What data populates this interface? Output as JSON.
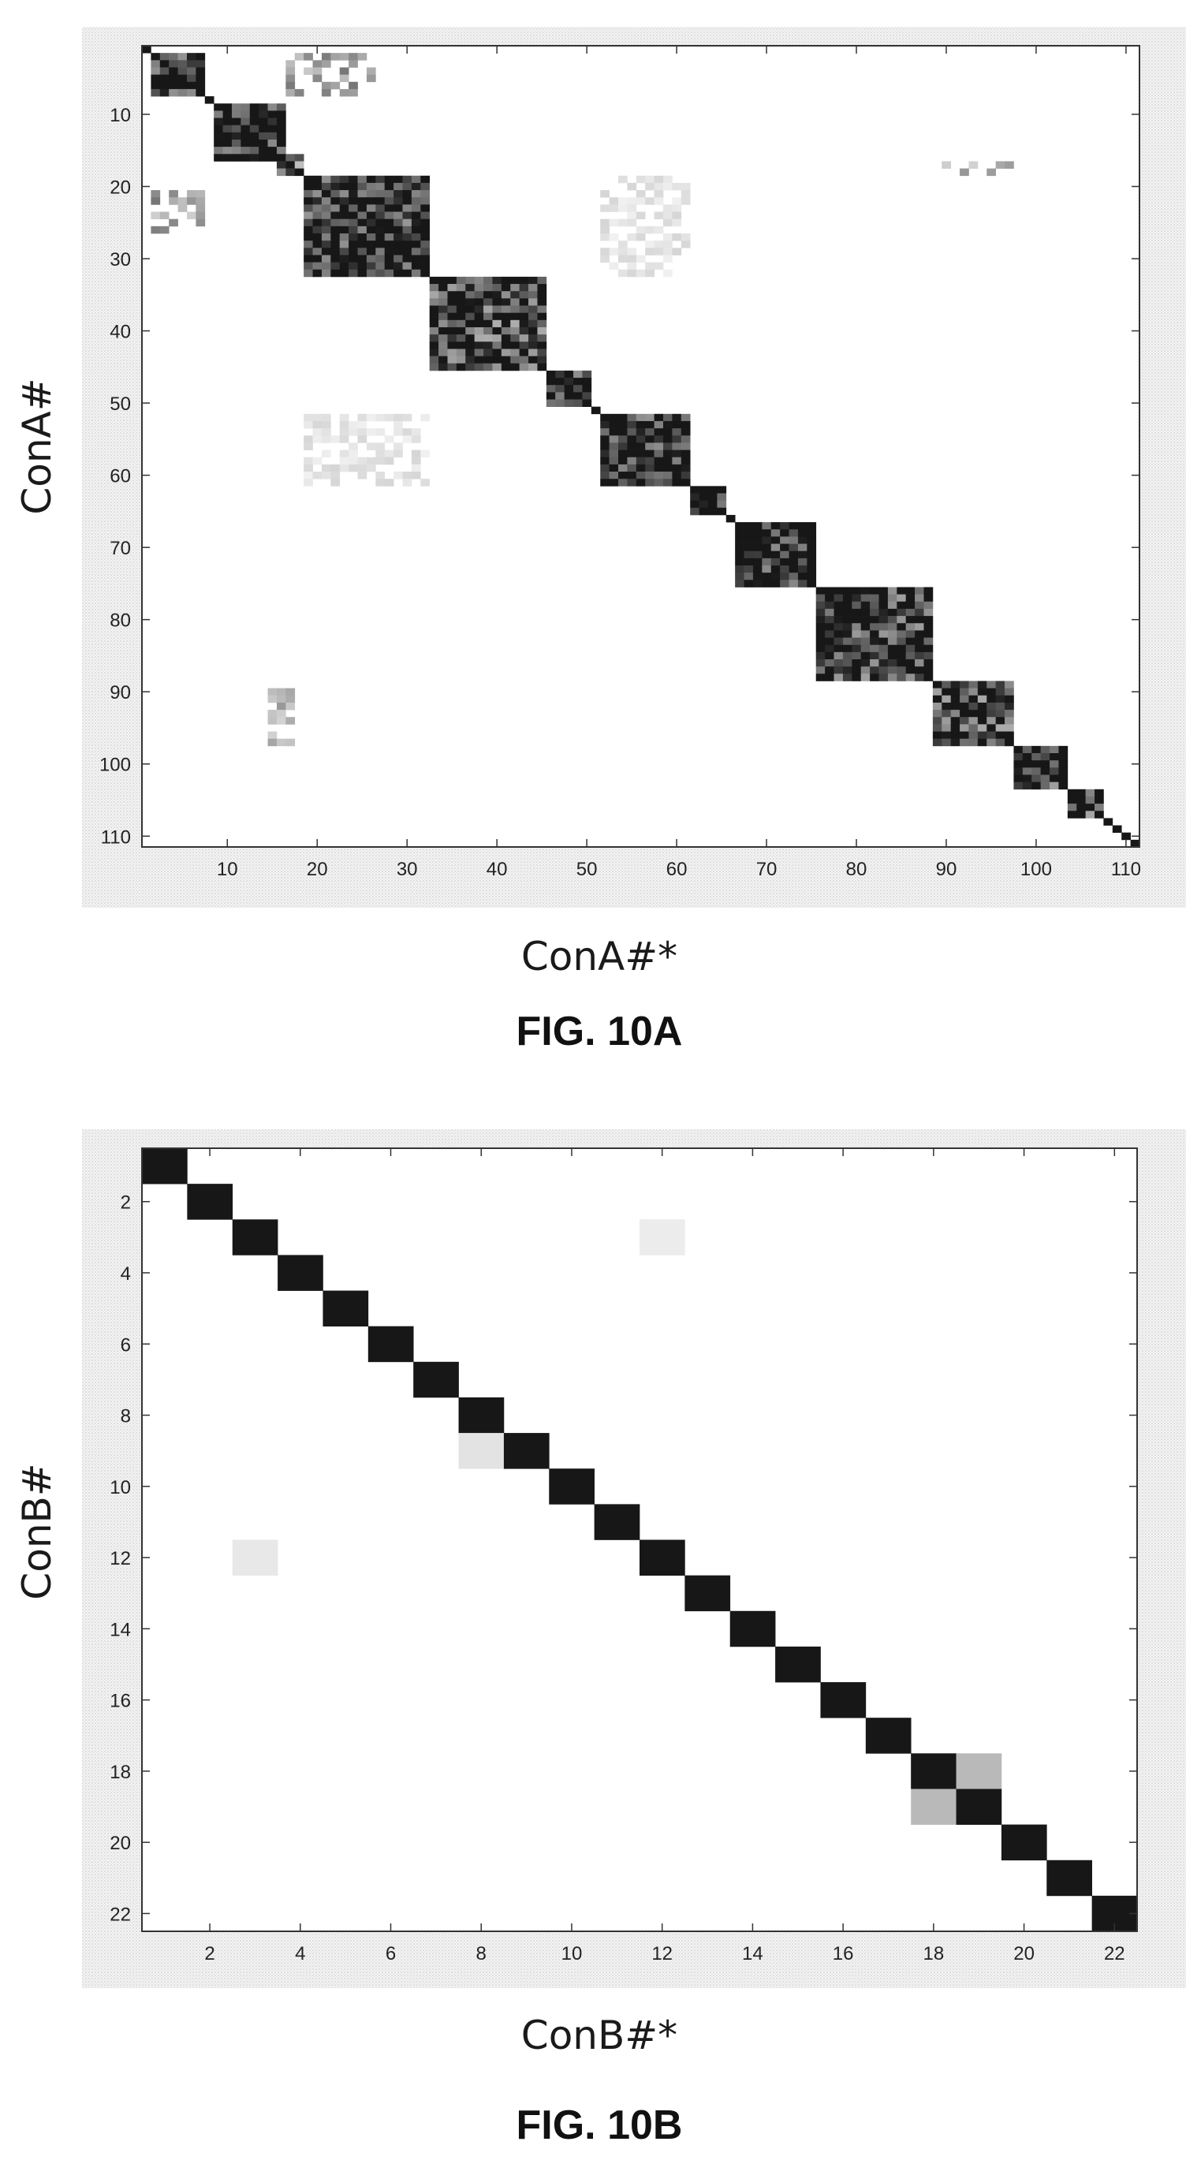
{
  "chart_data": [
    {
      "type": "heatmap",
      "figure_label": "FIG. 10A",
      "xlabel": "ConA#*",
      "ylabel": "ConA#",
      "n": 111,
      "xlim": [
        0.5,
        111.5
      ],
      "ylim": [
        0.5,
        111.5
      ],
      "y_axis_inverted": true,
      "x_ticks": [
        10,
        20,
        30,
        40,
        50,
        60,
        70,
        80,
        90,
        100,
        110
      ],
      "y_ticks": [
        10,
        20,
        30,
        40,
        50,
        60,
        70,
        80,
        90,
        100,
        110
      ],
      "grid": false,
      "colormap": "gray-reversed",
      "value_range": [
        0,
        1
      ],
      "diagonal_value": 1,
      "blocks": [
        {
          "row": [
            2,
            7
          ],
          "col": [
            2,
            7
          ],
          "value": 0.9
        },
        {
          "row": [
            9,
            16
          ],
          "col": [
            9,
            16
          ],
          "value": 0.95
        },
        {
          "row": [
            16,
            18
          ],
          "col": [
            16,
            18
          ],
          "value": 0.55
        },
        {
          "row": [
            19,
            32
          ],
          "col": [
            19,
            32
          ],
          "value": 0.9
        },
        {
          "row": [
            33,
            45
          ],
          "col": [
            33,
            45
          ],
          "value": 0.8
        },
        {
          "row": [
            46,
            50
          ],
          "col": [
            46,
            50
          ],
          "value": 0.85
        },
        {
          "row": [
            52,
            61
          ],
          "col": [
            52,
            61
          ],
          "value": 0.9
        },
        {
          "row": [
            62,
            65
          ],
          "col": [
            62,
            65
          ],
          "value": 0.95
        },
        {
          "row": [
            67,
            75
          ],
          "col": [
            67,
            75
          ],
          "value": 0.92
        },
        {
          "row": [
            76,
            88
          ],
          "col": [
            76,
            88
          ],
          "value": 0.85
        },
        {
          "row": [
            89,
            97
          ],
          "col": [
            89,
            97
          ],
          "value": 0.8
        },
        {
          "row": [
            98,
            103
          ],
          "col": [
            98,
            103
          ],
          "value": 0.85
        },
        {
          "row": [
            104,
            107
          ],
          "col": [
            104,
            107
          ],
          "value": 0.8
        }
      ],
      "off_diagonal": [
        {
          "row": [
            2,
            7
          ],
          "col": [
            17,
            26
          ],
          "value": 0.4
        },
        {
          "row": [
            17,
            18
          ],
          "col": [
            89,
            97
          ],
          "value": 0.35
        },
        {
          "row": [
            21,
            26
          ],
          "col": [
            2,
            7
          ],
          "value": 0.4
        },
        {
          "row": [
            19,
            32
          ],
          "col": [
            52,
            61
          ],
          "value": 0.12
        },
        {
          "row": [
            52,
            61
          ],
          "col": [
            19,
            32
          ],
          "value": 0.12
        },
        {
          "row": [
            89,
            97
          ],
          "col": [
            15,
            17
          ],
          "value": 0.3
        }
      ]
    },
    {
      "type": "heatmap",
      "figure_label": "FIG. 10B",
      "xlabel": "ConB#*",
      "ylabel": "ConB#",
      "n": 22,
      "xlim": [
        0.5,
        22.5
      ],
      "ylim": [
        0.5,
        22.5
      ],
      "y_axis_inverted": true,
      "x_ticks": [
        2,
        4,
        6,
        8,
        10,
        12,
        14,
        16,
        18,
        20,
        22
      ],
      "y_ticks": [
        2,
        4,
        6,
        8,
        10,
        12,
        14,
        16,
        18,
        20,
        22
      ],
      "grid": false,
      "colormap": "gray-reversed",
      "value_range": [
        0,
        1
      ],
      "diagonal_value": 1,
      "off_diagonal_cells": [
        {
          "row": 3,
          "col": 12,
          "value": 0.08
        },
        {
          "row": 9,
          "col": 8,
          "value": 0.12
        },
        {
          "row": 12,
          "col": 3,
          "value": 0.1
        },
        {
          "row": 18,
          "col": 19,
          "value": 0.3
        },
        {
          "row": 19,
          "col": 18,
          "value": 0.3
        }
      ]
    }
  ]
}
